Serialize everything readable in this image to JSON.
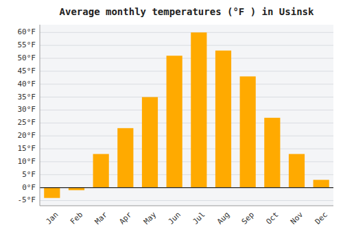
{
  "chart_data": {
    "type": "bar",
    "title": "Average monthly temperatures (°F ) in Usinsk",
    "categories": [
      "Jan",
      "Feb",
      "Mar",
      "Apr",
      "May",
      "Jun",
      "Jul",
      "Aug",
      "Sep",
      "Oct",
      "Nov",
      "Dec"
    ],
    "values": [
      -4,
      -1,
      13,
      23,
      35,
      51,
      60,
      53,
      43,
      27,
      13,
      3
    ],
    "color": "#FFAA00",
    "ylim": [
      -7,
      63
    ],
    "yticks": [
      {
        "value": -5,
        "label": "-5°F"
      },
      {
        "value": 0,
        "label": "0°F"
      },
      {
        "value": 5,
        "label": "5°F"
      },
      {
        "value": 10,
        "label": "10°F"
      },
      {
        "value": 15,
        "label": "15°F"
      },
      {
        "value": 20,
        "label": "20°F"
      },
      {
        "value": 25,
        "label": "25°F"
      },
      {
        "value": 30,
        "label": "30°F"
      },
      {
        "value": 35,
        "label": "35°F"
      },
      {
        "value": 40,
        "label": "40°F"
      },
      {
        "value": 45,
        "label": "45°F"
      },
      {
        "value": 50,
        "label": "50°F"
      },
      {
        "value": 55,
        "label": "55°F"
      },
      {
        "value": 60,
        "label": "60°F"
      }
    ],
    "grid": true
  }
}
